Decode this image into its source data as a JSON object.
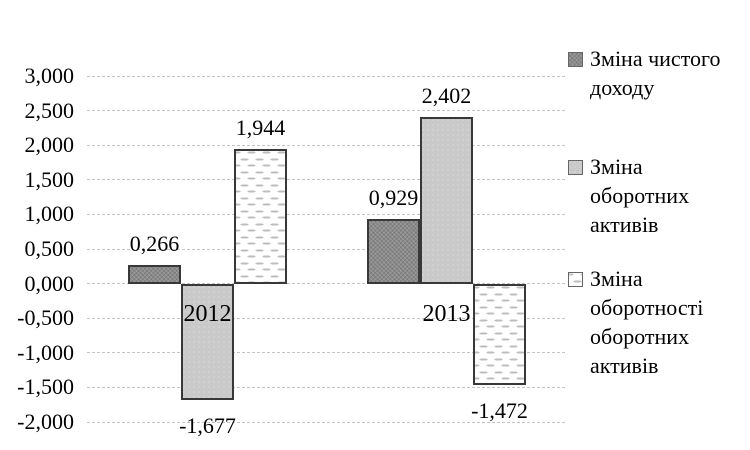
{
  "chart_data": {
    "type": "bar",
    "categories": [
      "2012",
      "2013"
    ],
    "series": [
      {
        "name": "Зміна чистого доходу",
        "style": "dark",
        "values": [
          0.266,
          0.929
        ],
        "labels": [
          "0,266",
          "0,929"
        ]
      },
      {
        "name": "Зміна оборотних активів",
        "style": "light",
        "values": [
          -1.677,
          2.402
        ],
        "labels": [
          "-1,677",
          "2,402"
        ]
      },
      {
        "name": "Зміна оборотності оборотних активів",
        "style": "dashed",
        "values": [
          1.944,
          -1.472
        ],
        "labels": [
          "1,944",
          "-1,472"
        ]
      }
    ],
    "title": "",
    "xlabel": "",
    "ylabel": "",
    "ylim": [
      -2.0,
      3.0
    ],
    "grid": "horizontal-dashed",
    "legend_position": "right",
    "y_axis": {
      "ticks": [
        {
          "value": 3.0,
          "label": "3,000"
        },
        {
          "value": 2.5,
          "label": "2,500"
        },
        {
          "value": 2.0,
          "label": "2,000"
        },
        {
          "value": 1.5,
          "label": "1,500"
        },
        {
          "value": 1.0,
          "label": "1,000"
        },
        {
          "value": 0.5,
          "label": "0,500"
        },
        {
          "value": 0.0,
          "label": "0,000"
        },
        {
          "value": -0.5,
          "label": "-0,500"
        },
        {
          "value": -1.0,
          "label": "-1,000"
        },
        {
          "value": -1.5,
          "label": "-1,500"
        },
        {
          "value": -2.0,
          "label": "-2,000"
        }
      ]
    }
  },
  "legend": {
    "items": [
      {
        "swatch": "dark",
        "lines": [
          "Зміна чистого",
          "доходу"
        ]
      },
      {
        "swatch": "light",
        "lines": [
          "Зміна",
          "оборотних",
          "активів"
        ]
      },
      {
        "swatch": "dashed",
        "lines": [
          "Зміна",
          "оборотності",
          "оборотних",
          "активів"
        ]
      }
    ]
  },
  "colors": {
    "dark_fill": "#8a8a8a",
    "light_fill": "#c9c9c9",
    "dashed_fill": "#ffffff",
    "bar_border": "#383838",
    "gridline": "#c3c3c3",
    "text": "#000000",
    "background": "#ffffff"
  }
}
